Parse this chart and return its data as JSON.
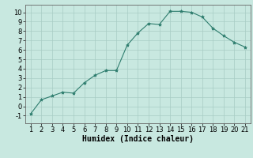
{
  "x": [
    1,
    2,
    3,
    4,
    5,
    6,
    7,
    8,
    9,
    10,
    11,
    12,
    13,
    14,
    15,
    16,
    17,
    18,
    19,
    20,
    21
  ],
  "y": [
    -0.8,
    0.7,
    1.1,
    1.5,
    1.4,
    2.5,
    3.3,
    3.8,
    3.8,
    6.5,
    7.8,
    8.8,
    8.7,
    10.1,
    10.1,
    10.0,
    9.5,
    8.3,
    7.5,
    6.8,
    6.3
  ],
  "line_color": "#2e7d6e",
  "marker": "*",
  "marker_size": 3,
  "bg_color": "#c8e8e0",
  "grid_color": "#a8ccc4",
  "xlabel": "Humidex (Indice chaleur)",
  "xlabel_fontsize": 7,
  "tick_fontsize": 6,
  "xlim": [
    0.5,
    21.5
  ],
  "ylim": [
    -1.8,
    10.8
  ],
  "yticks": [
    -1,
    0,
    1,
    2,
    3,
    4,
    5,
    6,
    7,
    8,
    9,
    10
  ],
  "xticks": [
    1,
    2,
    3,
    4,
    5,
    6,
    7,
    8,
    9,
    10,
    11,
    12,
    13,
    14,
    15,
    16,
    17,
    18,
    19,
    20,
    21
  ]
}
